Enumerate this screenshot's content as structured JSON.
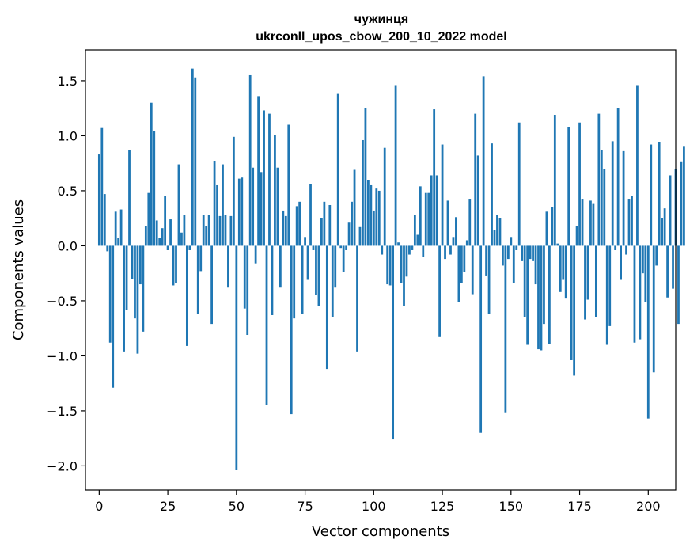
{
  "chart_data": {
    "type": "bar",
    "title": "чужинця",
    "subtitle": "ukrconll_upos_cbow_200_10_2022 model",
    "xlabel": "Vector components",
    "ylabel": "Components values",
    "xlim": [
      -5,
      210
    ],
    "ylim": [
      -2.22,
      1.78
    ],
    "xticks": [
      0,
      25,
      50,
      75,
      100,
      125,
      150,
      175,
      200
    ],
    "yticks": [
      -2.0,
      -1.5,
      -1.0,
      -0.5,
      0.0,
      0.5,
      1.0,
      1.5
    ],
    "ytick_labels": [
      "−2.0",
      "−1.5",
      "−1.0",
      "−0.5",
      "0.0",
      "0.5",
      "1.0",
      "1.5"
    ],
    "bar_color": "#1f77b4",
    "grid": false,
    "values": [
      0.83,
      1.07,
      0.47,
      -0.05,
      -0.88,
      -1.29,
      0.31,
      0.07,
      0.33,
      -0.96,
      -0.58,
      0.87,
      -0.3,
      -0.66,
      -0.98,
      -0.35,
      -0.78,
      0.18,
      0.48,
      1.3,
      1.04,
      0.23,
      0.07,
      0.16,
      0.45,
      -0.04,
      0.24,
      -0.36,
      -0.34,
      0.74,
      0.12,
      0.28,
      -0.91,
      -0.04,
      1.61,
      1.53,
      -0.62,
      -0.23,
      0.28,
      0.18,
      0.28,
      -0.71,
      0.77,
      0.55,
      0.27,
      0.74,
      0.28,
      -0.38,
      0.27,
      0.99,
      -2.04,
      0.61,
      0.62,
      -0.57,
      -0.81,
      1.55,
      0.71,
      -0.16,
      1.36,
      0.67,
      1.23,
      -1.45,
      1.2,
      -0.63,
      1.01,
      0.71,
      -0.38,
      0.32,
      0.27,
      1.1,
      -1.53,
      -0.66,
      0.36,
      0.4,
      -0.62,
      0.08,
      -0.31,
      0.56,
      -0.04,
      -0.45,
      -0.55,
      0.25,
      0.4,
      -1.12,
      0.37,
      -0.65,
      -0.38,
      1.38,
      -0.02,
      -0.24,
      -0.04,
      0.21,
      0.4,
      0.69,
      -0.96,
      0.17,
      0.96,
      1.25,
      0.6,
      0.55,
      0.32,
      0.52,
      0.5,
      -0.08,
      0.89,
      -0.35,
      -0.36,
      -1.76,
      1.46,
      0.03,
      -0.34,
      -0.55,
      -0.28,
      -0.08,
      -0.04,
      0.28,
      0.1,
      0.54,
      -0.1,
      0.48,
      0.48,
      0.64,
      1.24,
      0.64,
      -0.83,
      0.92,
      -0.12,
      0.41,
      -0.08,
      0.08,
      0.26,
      -0.51,
      -0.34,
      -0.24,
      0.05,
      0.42,
      -0.44,
      1.2,
      0.82,
      -1.7,
      1.54,
      -0.27,
      -0.62,
      0.93,
      0.14,
      0.28,
      0.25,
      -0.18,
      -1.52,
      -0.12,
      0.08,
      -0.34,
      -0.04,
      1.12,
      -0.14,
      -0.65,
      -0.9,
      -0.12,
      -0.14,
      -0.35,
      -0.94,
      -0.95,
      -0.71,
      0.31,
      -0.89,
      0.35,
      1.19,
      0.02,
      -0.42,
      -0.31,
      -0.48,
      1.08,
      -1.04,
      -1.18,
      0.18,
      1.12,
      0.42,
      -0.67,
      -0.49,
      0.41,
      0.38,
      -0.65,
      1.2,
      0.87,
      0.7,
      -0.9,
      -0.73,
      0.95,
      -0.04,
      1.25,
      -0.31,
      0.86,
      -0.08,
      0.42,
      0.45,
      -0.88,
      1.46,
      -0.85,
      -0.25,
      -0.51,
      -1.57,
      0.92,
      -1.15,
      -0.18,
      0.94,
      0.25,
      0.34,
      -0.47,
      0.64,
      -0.39,
      0.7,
      -0.71,
      0.76,
      0.9
    ]
  }
}
